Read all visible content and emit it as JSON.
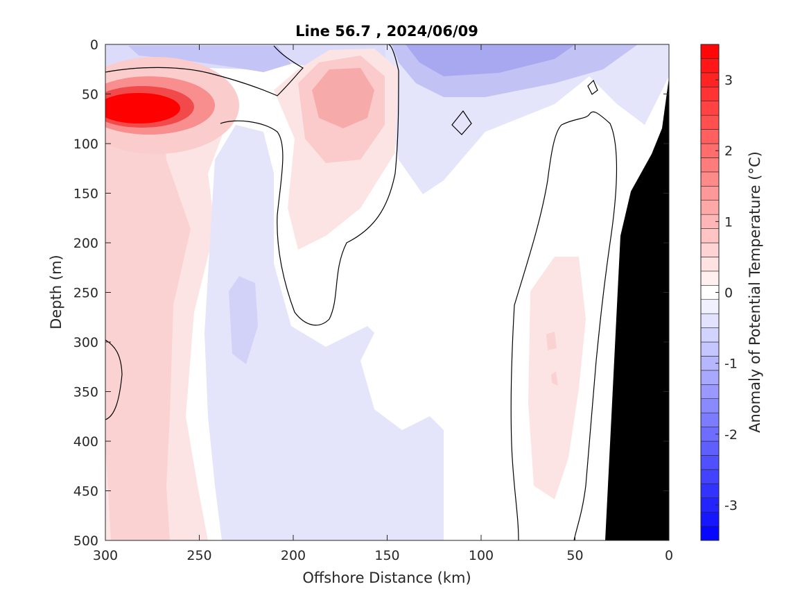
{
  "chart_data": {
    "type": "heatmap",
    "title": "Line 56.7 , 2024/06/09",
    "xlabel": "Offshore Distance (km)",
    "ylabel": "Depth (m)",
    "colorbar_label": "Anomaly of Potential Temperature (°C)",
    "x_reversed": true,
    "y_reversed": true,
    "xlim": [
      0,
      300
    ],
    "ylim": [
      0,
      500
    ],
    "xticks": [
      "300",
      "250",
      "200",
      "150",
      "100",
      "50",
      "0"
    ],
    "xtick_values": [
      300,
      250,
      200,
      150,
      100,
      50,
      0
    ],
    "yticks": [
      "0",
      "50",
      "100",
      "150",
      "200",
      "250",
      "300",
      "350",
      "400",
      "450",
      "500"
    ],
    "ytick_values": [
      0,
      50,
      100,
      150,
      200,
      250,
      300,
      350,
      400,
      450,
      500
    ],
    "clim": [
      -3.5,
      3.5
    ],
    "contour_interval": 0.2,
    "contour_line_level": 0,
    "colorbar_ticks": [
      "3",
      "2",
      "1",
      "0",
      "-1",
      "-2",
      "-3"
    ],
    "colorbar_tick_values": [
      3,
      2,
      1,
      0,
      -1,
      -2,
      -3
    ],
    "colormap": {
      "negative": "#0000ff",
      "zero": "#ffffff",
      "positive": "#ff0000"
    },
    "land_mask_color": "#000000",
    "features": [
      {
        "label": "warm core",
        "x": 275,
        "depth": 62,
        "anomaly": 3.5
      },
      {
        "label": "warm eddy",
        "x": 172,
        "depth": 52,
        "anomaly": 1.4
      },
      {
        "label": "warm band offshore",
        "x": 270,
        "depth": 260,
        "anomaly": 0.6
      },
      {
        "label": "warm band nearshore",
        "x": 62,
        "depth": 320,
        "anomaly": 0.5
      },
      {
        "label": "cool surface offshore",
        "x": 230,
        "depth": 15,
        "anomaly": -0.6
      },
      {
        "label": "cool surface inshore",
        "x": 105,
        "depth": 15,
        "anomaly": -1.3
      },
      {
        "label": "cool column",
        "x": 225,
        "depth": 280,
        "anomaly": -0.5
      },
      {
        "label": "cool deep",
        "x": 175,
        "depth": 420,
        "anomaly": -0.3
      }
    ]
  }
}
